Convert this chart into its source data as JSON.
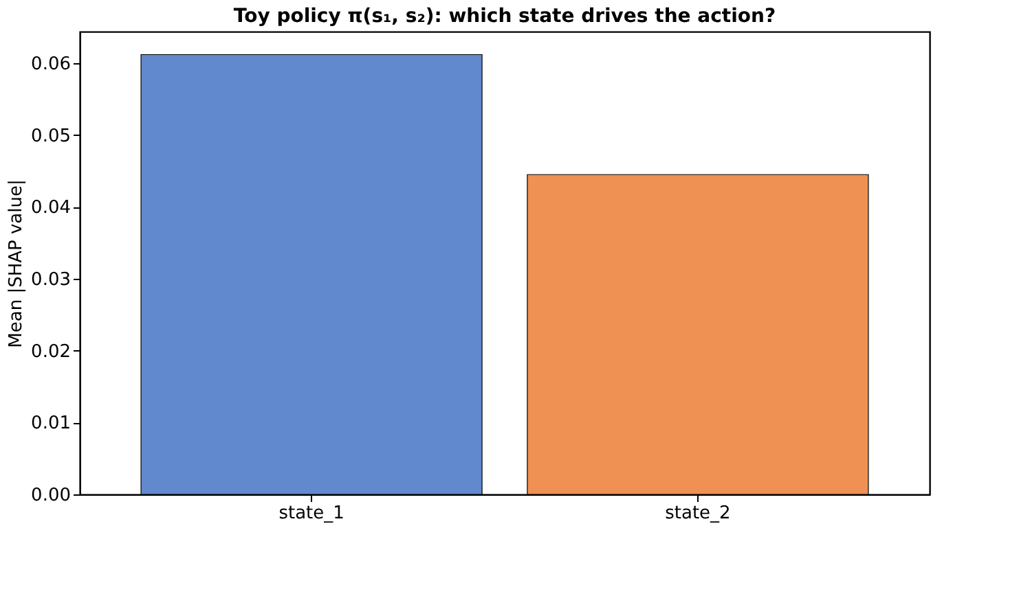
{
  "chart_data": {
    "type": "bar",
    "title": "Toy policy π(s₁, s₂): which state drives the action?",
    "ylabel": "Mean |SHAP value|",
    "categories": [
      "state_1",
      "state_2"
    ],
    "values": [
      0.0612,
      0.0445
    ],
    "colors": [
      "#6189cd",
      "#ef9152"
    ],
    "ylim": [
      0,
      0.0644
    ],
    "yticks": [
      {
        "value": 0,
        "label": "0.00"
      },
      {
        "value": 0.01,
        "label": "0.01"
      },
      {
        "value": 0.02,
        "label": "0.02"
      },
      {
        "value": 0.03,
        "label": "0.03"
      },
      {
        "value": 0.04,
        "label": "0.04"
      },
      {
        "value": 0.05,
        "label": "0.05"
      },
      {
        "value": 0.06,
        "label": "0.06"
      }
    ],
    "grid": false,
    "legend": false
  }
}
